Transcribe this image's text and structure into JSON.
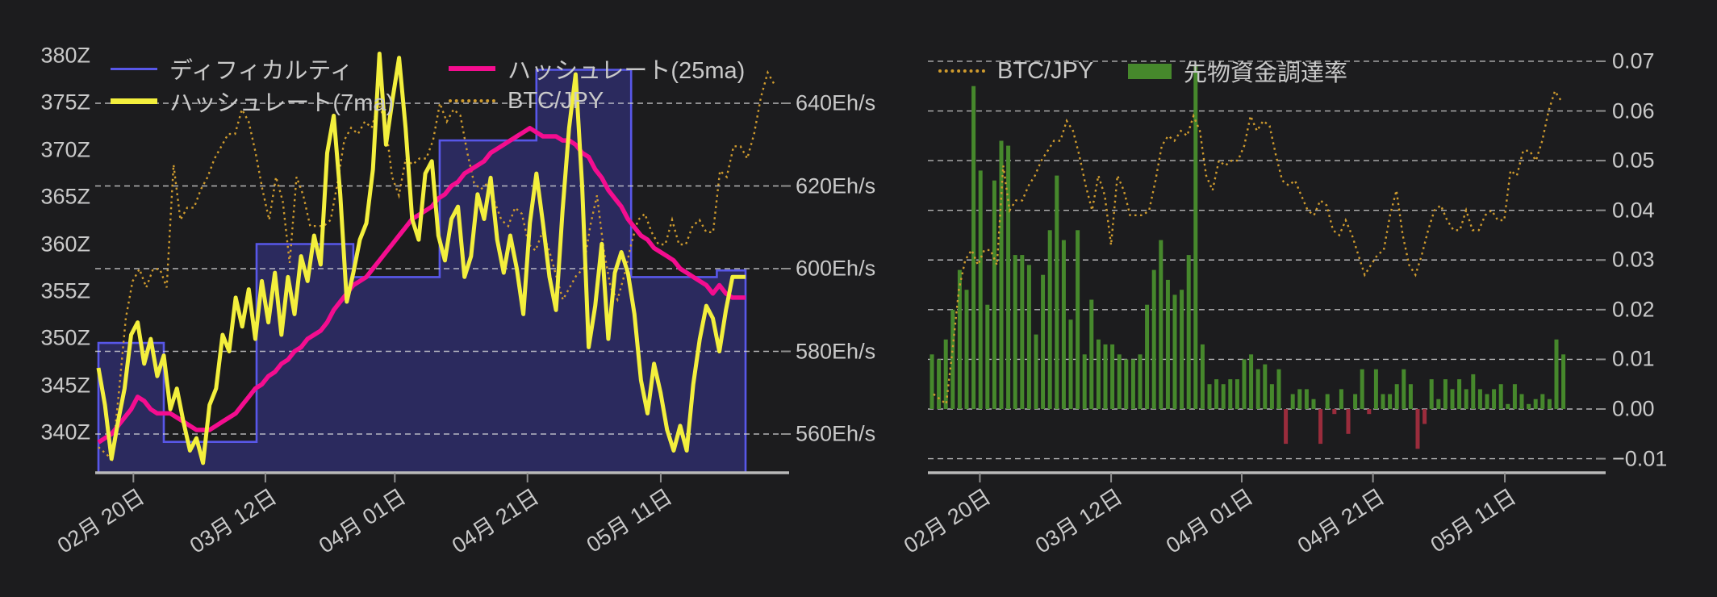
{
  "page": {
    "background": "#1c1c1e"
  },
  "colors": {
    "difficulty_line": "#5857e8",
    "difficulty_fill": "#2b2a5e",
    "hashrate_7ma": "#f3ef3d",
    "hashrate_25ma": "#f40d8f",
    "btc_jpy": "#cf9b2e",
    "funding_positive": "#46882c",
    "funding_negative": "#9a2c3c",
    "grid": "#dcdcdc",
    "axis_line": "#b9b9b9",
    "label": "#c9c9c9"
  },
  "left_chart": {
    "legend_items": [
      {
        "label": "ディフィカルティ",
        "swatch": "line-blue"
      },
      {
        "label": "ハッシュレート(25ma)",
        "swatch": "line-magenta"
      },
      {
        "label": "ハッシュレート(7ma)",
        "swatch": "line-yellow"
      },
      {
        "label": "BTC/JPY",
        "swatch": "dotted-orange"
      }
    ]
  },
  "right_chart": {
    "legend_items": [
      {
        "label": "BTC/JPY",
        "swatch": "dotted-orange"
      },
      {
        "label": "先物資金調達率",
        "swatch": "rect-green"
      }
    ]
  },
  "shared_series": {
    "btc_jpy_relative": {
      "name": "BTC/JPY",
      "note": "price line drawn without its own labeled axis; values are relative levels as read against the right chart funding-rate axis",
      "values": [
        0.003,
        0.002,
        0.001,
        0.012,
        0.024,
        0.03,
        0.032,
        0.029,
        0.032,
        0.032,
        0.029,
        0.049,
        0.04,
        0.042,
        0.042,
        0.045,
        0.047,
        0.05,
        0.052,
        0.054,
        0.054,
        0.058,
        0.056,
        0.051,
        0.045,
        0.04,
        0.047,
        0.043,
        0.033,
        0.047,
        0.044,
        0.039,
        0.039,
        0.039,
        0.04,
        0.046,
        0.053,
        0.055,
        0.054,
        0.056,
        0.055,
        0.059,
        0.056,
        0.047,
        0.044,
        0.05,
        0.049,
        0.05,
        0.05,
        0.053,
        0.059,
        0.056,
        0.058,
        0.057,
        0.051,
        0.046,
        0.045,
        0.046,
        0.043,
        0.04,
        0.039,
        0.042,
        0.041,
        0.036,
        0.035,
        0.038,
        0.035,
        0.031,
        0.027,
        0.029,
        0.031,
        0.032,
        0.039,
        0.044,
        0.035,
        0.029,
        0.027,
        0.031,
        0.036,
        0.04,
        0.041,
        0.038,
        0.036,
        0.036,
        0.04,
        0.036,
        0.036,
        0.039,
        0.04,
        0.038,
        0.038,
        0.048,
        0.047,
        0.052,
        0.052,
        0.05,
        0.054,
        0.06,
        0.064,
        0.062
      ]
    }
  },
  "chart_data": [
    {
      "id": "difficulty-hashrate",
      "type": "line",
      "title": "",
      "x_tick_labels": [
        "02月 20日",
        "03月 12日",
        "04月 01日",
        "04月 21日",
        "05月 11日"
      ],
      "y_axis_left": {
        "unit": "Z",
        "min": 340,
        "max": 380,
        "step": 5,
        "tick_labels": [
          "380Z",
          "375Z",
          "370Z",
          "365Z",
          "360Z",
          "355Z",
          "350Z",
          "345Z",
          "340Z"
        ]
      },
      "y_axis_right": {
        "unit": "Eh/s",
        "min": 560,
        "max": 640,
        "step": 20,
        "tick_labels": [
          "640Eh/s",
          "620Eh/s",
          "600Eh/s",
          "580Eh/s",
          "560Eh/s"
        ]
      },
      "grid": "dashed horizontal on right-axis ticks",
      "series": [
        {
          "name": "ディフィカルティ",
          "type": "step_area",
          "axis": "left",
          "unit": "Z",
          "color_key": "difficulty_line",
          "fill_key": "difficulty_fill",
          "steps_day_value": [
            [
              0,
              349.5
            ],
            [
              10,
              339
            ],
            [
              24.2,
              360
            ],
            [
              39,
              356.5
            ],
            [
              52.2,
              371
            ],
            [
              67,
              378.5
            ],
            [
              81.5,
              356.5
            ],
            [
              94.6,
              357.2
            ]
          ],
          "end_day": 99
        },
        {
          "name": "ハッシュレート(25ma)",
          "type": "line",
          "axis": "right",
          "unit": "Eh/s",
          "color_key": "hashrate_25ma",
          "values": [
            558,
            559,
            560,
            562,
            564,
            566,
            569,
            568,
            566,
            565,
            565,
            565,
            564,
            563,
            562,
            561,
            561,
            561,
            562,
            563,
            564,
            565,
            567,
            569,
            571,
            572,
            574,
            575,
            577,
            578,
            580,
            581,
            583,
            584,
            585,
            587,
            590,
            592,
            594,
            596,
            597,
            598,
            600,
            602,
            604,
            606,
            608,
            610,
            612,
            613,
            614,
            615,
            617,
            618,
            620,
            621,
            623,
            624,
            625,
            626,
            628,
            629,
            630,
            631,
            632,
            633,
            634,
            633,
            632,
            632,
            632,
            631,
            631,
            630,
            628,
            627,
            624,
            622,
            619,
            617,
            615,
            612,
            610,
            608,
            607,
            605,
            604,
            603,
            602,
            600,
            599,
            598,
            597,
            596,
            594,
            596,
            594,
            593,
            593,
            593
          ]
        },
        {
          "name": "ハッシュレート(7ma)",
          "type": "line",
          "axis": "right",
          "unit": "Eh/s",
          "color_key": "hashrate_7ma",
          "values": [
            576,
            567,
            554,
            563,
            571,
            584,
            587,
            577,
            583,
            574,
            579,
            566,
            571,
            563,
            556,
            559,
            553,
            567,
            571,
            584,
            580,
            593,
            586,
            595,
            583,
            597,
            587,
            599,
            584,
            598,
            589,
            603,
            597,
            608,
            601,
            628,
            637,
            618,
            592,
            599,
            607,
            611,
            624,
            652,
            630,
            641,
            651,
            634,
            612,
            607,
            623,
            626,
            608,
            602,
            612,
            615,
            598,
            603,
            618,
            612,
            622,
            607,
            599,
            608,
            600,
            589,
            611,
            623,
            611,
            598,
            590,
            614,
            634,
            647,
            620,
            581,
            591,
            606,
            583,
            599,
            604,
            599,
            589,
            573,
            565,
            577,
            570,
            561,
            556,
            562,
            556,
            572,
            583,
            591,
            588,
            580,
            590,
            598,
            598,
            598
          ]
        },
        {
          "name": "BTC/JPY",
          "type": "dotted_line",
          "axis": "unlabeled",
          "color_key": "btc_jpy",
          "values_ref": "btc_jpy_relative"
        }
      ]
    },
    {
      "id": "funding-rate",
      "type": "bar",
      "title": "",
      "x_tick_labels": [
        "02月 20日",
        "03月 12日",
        "04月 01日",
        "04月 21日",
        "05月 11日"
      ],
      "y_axis_right": {
        "unit": "",
        "min": -0.01,
        "max": 0.07,
        "step": 0.01,
        "tick_labels": [
          "0.07",
          "0.06",
          "0.05",
          "0.04",
          "0.03",
          "0.02",
          "0.01",
          "0.00",
          "−0.01"
        ]
      },
      "grid": "dashed horizontal on every tick",
      "series": [
        {
          "name": "BTC/JPY",
          "type": "dotted_line",
          "axis": "unlabeled",
          "color_key": "btc_jpy",
          "values_ref": "btc_jpy_relative"
        },
        {
          "name": "先物資金調達率",
          "type": "bar",
          "axis": "right",
          "color_key_positive": "funding_positive",
          "color_key_negative": "funding_negative",
          "values": [
            0.011,
            0.01,
            0.014,
            0.02,
            0.028,
            0.024,
            0.065,
            0.048,
            0.021,
            0.046,
            0.054,
            0.053,
            0.031,
            0.031,
            0.029,
            0.015,
            0.027,
            0.036,
            0.047,
            0.034,
            0.018,
            0.036,
            0.011,
            0.022,
            0.014,
            0.013,
            0.013,
            0.011,
            0.01,
            0.01,
            0.011,
            0.021,
            0.028,
            0.034,
            0.026,
            0.023,
            0.024,
            0.031,
            0.069,
            0.013,
            0.005,
            0.006,
            0.005,
            0.006,
            0.006,
            0.01,
            0.011,
            0.008,
            0.009,
            0.005,
            0.008,
            -0.007,
            0.003,
            0.004,
            0.004,
            0.002,
            -0.007,
            0.003,
            -0.001,
            0.004,
            -0.005,
            0.003,
            0.008,
            -0.001,
            0.008,
            0.003,
            0.003,
            0.005,
            0.008,
            0.005,
            -0.008,
            -0.003,
            0.006,
            0.002,
            0.006,
            0.004,
            0.006,
            0.004,
            0.007,
            0.004,
            0.003,
            0.004,
            0.005,
            0.001,
            0.005,
            0.003,
            0.001,
            0.002,
            0.003,
            0.002,
            0.014,
            0.011
          ]
        }
      ]
    }
  ]
}
